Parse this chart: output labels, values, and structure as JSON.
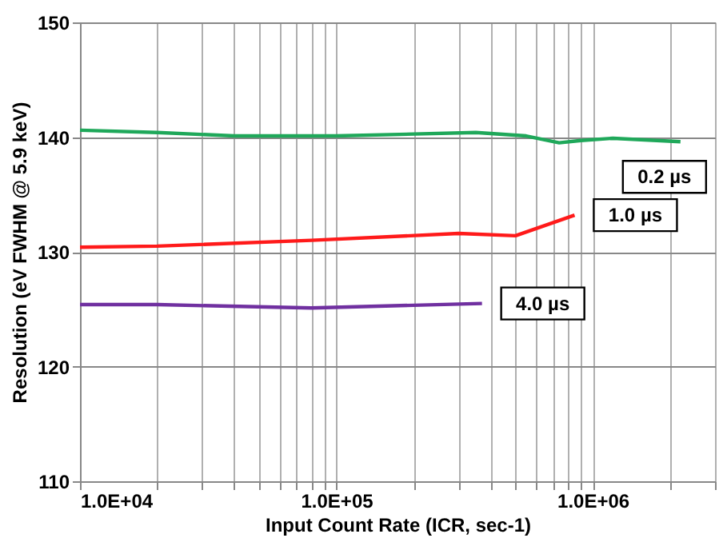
{
  "chart_data": {
    "type": "line",
    "xlabel": "Input Count Rate (ICR, sec-1)",
    "ylabel": "Resolution (eV FWHM @ 5.9 keV)",
    "log": "x",
    "xlim": [
      10000,
      3000000
    ],
    "ylim": [
      110,
      150
    ],
    "xticks": [
      {
        "value": 10000,
        "label": "1.0E+04"
      },
      {
        "value": 20000,
        "label": null
      },
      {
        "value": 30000,
        "label": null
      },
      {
        "value": 40000,
        "label": null
      },
      {
        "value": 50000,
        "label": null
      },
      {
        "value": 60000,
        "label": null
      },
      {
        "value": 70000,
        "label": null
      },
      {
        "value": 80000,
        "label": null
      },
      {
        "value": 90000,
        "label": null
      },
      {
        "value": 100000,
        "label": "1.0E+05"
      },
      {
        "value": 200000,
        "label": null
      },
      {
        "value": 300000,
        "label": null
      },
      {
        "value": 400000,
        "label": null
      },
      {
        "value": 500000,
        "label": null
      },
      {
        "value": 600000,
        "label": null
      },
      {
        "value": 700000,
        "label": null
      },
      {
        "value": 800000,
        "label": null
      },
      {
        "value": 900000,
        "label": null
      },
      {
        "value": 1000000,
        "label": "1.0E+06"
      },
      {
        "value": 2000000,
        "label": null
      },
      {
        "value": 3000000,
        "label": null
      }
    ],
    "yticks": [
      110,
      120,
      130,
      140,
      150
    ],
    "grid": true,
    "marker": "none",
    "line_style": "solid",
    "series": [
      {
        "name": "0.2 µs",
        "color": "#1fa85a",
        "x": [
          10000,
          20000,
          40000,
          100000,
          350000,
          550000,
          740000,
          900000,
          1200000,
          2200000
        ],
        "values": [
          140.6,
          140.4,
          140.1,
          140.1,
          140.4,
          140.1,
          139.5,
          139.7,
          139.9,
          139.6
        ]
      },
      {
        "name": "1.0 µs",
        "color": "#ff1a1a",
        "x": [
          10000,
          20000,
          80000,
          300000,
          500000,
          850000
        ],
        "values": [
          130.4,
          130.5,
          131.0,
          131.6,
          131.4,
          133.2
        ]
      },
      {
        "name": "4.0 µs",
        "color": "#7030a0",
        "x": [
          10000,
          20000,
          80000,
          370000
        ],
        "values": [
          125.4,
          125.4,
          125.1,
          125.5
        ]
      }
    ]
  }
}
